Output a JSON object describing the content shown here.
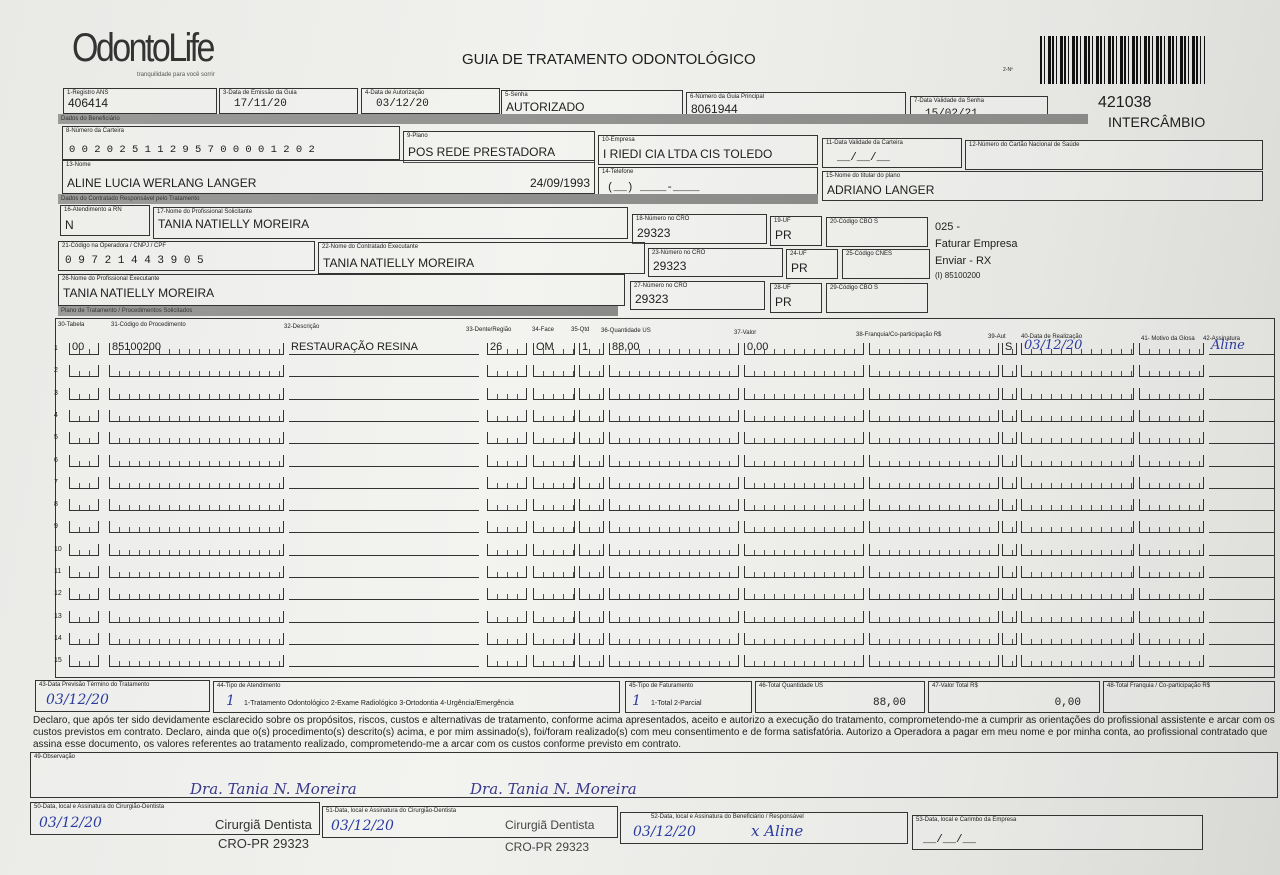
{
  "header": {
    "logo": "OdontoLife",
    "tagline": "tranquilidade para você sorrir",
    "title": "GUIA DE TRATAMENTO ODONTOLÓGICO",
    "guide_no_label": "2-Nº",
    "code": "421038",
    "exchange": "INTERCÂMBIO"
  },
  "fields": {
    "f1": {
      "label": "1-Registro ANS",
      "value": "406414"
    },
    "f3": {
      "label": "3-Data de Emissão da Guia",
      "value": "17/11/20"
    },
    "f4": {
      "label": "4-Data de Autorização",
      "value": "03/12/20"
    },
    "f5": {
      "label": "5-Senha",
      "value": "AUTORIZADO"
    },
    "f6": {
      "label": "6-Número da Guia Principal",
      "value": "8061944"
    },
    "f7": {
      "label": "7-Data Validade da Senha",
      "value": "15/02/21"
    },
    "f8": {
      "label": "8-Número da Carteira",
      "value": "0 0 2 0 2 5 1 1 2 9 5 7 0 0 0 0 1 2 0 2"
    },
    "f9": {
      "label": "9-Plano",
      "value": "POS REDE PRESTADORA"
    },
    "f10": {
      "label": "10-Empresa",
      "value": "I RIEDI  CIA LTDA  CIS TOLEDO"
    },
    "f11": {
      "label": "11-Data Validade da Carteira",
      "value": "__/__/__"
    },
    "f12": {
      "label": "12-Número do Cartão Nacional de Saúde",
      "value": ""
    },
    "f13": {
      "label": "13-Nome",
      "value": "ALINE LUCIA WERLANG LANGER",
      "birth": "24/09/1993"
    },
    "f14": {
      "label": "14-Telefone",
      "value": "(__) ____-____"
    },
    "f15": {
      "label": "15-Nome do titular do plano",
      "value": "ADRIANO LANGER"
    },
    "f16": {
      "label": "16-Atendimento a RN",
      "value": "N"
    },
    "f17": {
      "label": "17-Nome do Profissional Solicitante",
      "value": "TANIA NATIELLY MOREIRA"
    },
    "f18": {
      "label": "18-Número no CRO",
      "value": "29323"
    },
    "f19": {
      "label": "19-UF",
      "value": "PR"
    },
    "f20": {
      "label": "20-Código CBO S",
      "value": ""
    },
    "f21": {
      "label": "21-Código na Operadora / CNPJ / CPF",
      "value": "0 9 7 2 1 4 4 3 9 0 5"
    },
    "f22": {
      "label": "22-Nome do Contratado Executante",
      "value": "TANIA NATIELLY MOREIRA"
    },
    "f23": {
      "label": "23-Número no CRO",
      "value": "29323"
    },
    "f24": {
      "label": "24-UF",
      "value": "PR"
    },
    "f25": {
      "label": "25-Código CNES",
      "value": ""
    },
    "f26": {
      "label": "26-Nome do Profissional Executante",
      "value": "TANIA NATIELLY MOREIRA"
    },
    "f27": {
      "label": "27-Número no CRO",
      "value": "29323"
    },
    "f28": {
      "label": "28-UF",
      "value": "PR"
    },
    "f29": {
      "label": "29-Código CBO S",
      "value": ""
    }
  },
  "side_notes": {
    "line1": "025 -",
    "line2": "Faturar Empresa",
    "line3": "Enviar - RX",
    "line4": "(I) 85100200"
  },
  "sections": {
    "beneficiary": "Dados do Beneficiário",
    "contracted": "Dados do Contratado Responsável pelo Tratamento",
    "plan": "Plano de Tratamento / Procedimentos Solicitados"
  },
  "procedures": {
    "headers": {
      "tabela": "30-Tabela",
      "codigo": "31-Código do Procedimento",
      "descricao": "32-Descrição",
      "dente": "33-Dente/Região",
      "face": "34-Face",
      "qtd": "35-Qtd",
      "qtd_us": "36-Quantidade US",
      "valor": "37-Valor",
      "franquia": "38-Franquia/Co-participação R$",
      "aut": "39-Aut",
      "data": "40-Data de Realização",
      "motivo": "41- Motivo da Glosa",
      "assinatura": "42-Assinatura"
    },
    "row_count": 15,
    "rows": [
      {
        "n": "1",
        "tabela": "00",
        "codigo": "85100200",
        "descricao": "RESTAURAÇÃO RESINA",
        "dente": "26",
        "face": "OM",
        "qtd": "1",
        "qtd_us": "88,00",
        "valor": "0,00",
        "franquia": "",
        "aut": "S",
        "data": "03/12/20",
        "motivo": "",
        "assinatura": "Aline"
      }
    ]
  },
  "totals": {
    "f43": {
      "label": "43-Data Previsão Término do Tratamento",
      "value": "03/12/20"
    },
    "f44": {
      "label": "44-Tipo de Atendimento",
      "value": "1",
      "options": "1-Tratamento Odontológico  2-Exame Radiológico  3-Ortodontia  4-Urgência/Emergência"
    },
    "f45": {
      "label": "45-Tipo de Faturamento",
      "value": "1",
      "options": "1-Total  2-Parcial"
    },
    "f46": {
      "label": "46-Total Quantidade US",
      "value": "88,00"
    },
    "f47": {
      "label": "47-Valor Total R$",
      "value": "0,00"
    },
    "f48": {
      "label": "48-Total Franquia / Co-participação R$",
      "value": ""
    }
  },
  "declaration": "Declaro, que após ter sido devidamente esclarecido sobre os propósitos, riscos, custos e alternativas de tratamento, conforme acima apresentados, aceito e autorizo a execução do tratamento, comprometendo-me a cumprir as orientações do profissional assistente e arcar com os custos previstos em contrato. Declaro, ainda que o(s) procedimento(s) descrito(s) acima, e por mim assinado(s), foi/foram realizado(s) com meu consentimento e de forma satisfatória. Autorizo a Operadora a pagar em meu nome e por minha conta, ao profissional contratado que assina esse documento, os valores referentes ao tratamento realizado, comprometendo-me a arcar com os custos conforme previsto em contrato.",
  "observation": {
    "label": "49-Observação",
    "value": ""
  },
  "signatures": {
    "f50": {
      "label": "50-Data, local e Assinatura do Cirurgião-Dentista",
      "date": "03/12/20",
      "stamp_name": "Dra. Tania N. Moreira",
      "stamp_role": "Cirurgiã Dentista",
      "stamp_cro": "CRO-PR 29323"
    },
    "f51": {
      "label": "51-Data, local e Assinatura do Cirurgião-Dentista",
      "date": "03/12/20",
      "stamp_name": "Dra. Tania N. Moreira",
      "stamp_role": "Cirurgiã Dentista",
      "stamp_cro": "CRO-PR 29323"
    },
    "f52": {
      "label": "52-Data, local e Assinatura do Beneficiário / Responsável",
      "date": "03/12/20",
      "signature": "x Aline"
    },
    "f53": {
      "label": "53-Data, local e Carimbo da Empresa",
      "date": "__/__/__"
    }
  }
}
